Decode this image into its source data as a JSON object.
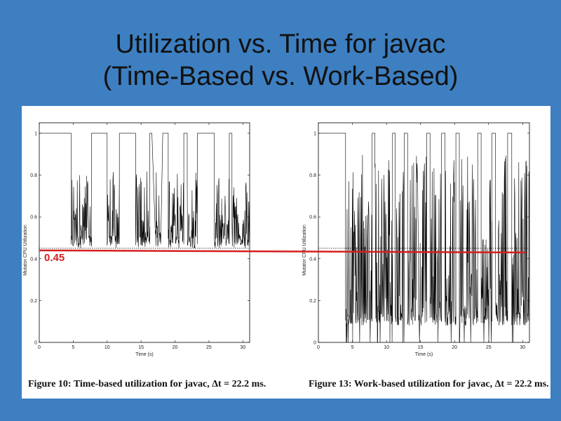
{
  "slide": {
    "title_line1": "Utilization vs. Time for javac",
    "title_line2": "(Time-Based vs. Work-Based)",
    "reference_value_label": "0.45",
    "colors": {
      "background": "#3d7fc1",
      "reference_line": "#d61f1f",
      "trace": "#000000"
    }
  },
  "chart_data": [
    {
      "type": "line",
      "caption_prefix": "Figure 10:",
      "caption_text": "Time-based utilization for javac, Δt = 22.2 ms.",
      "xlabel": "Time (s)",
      "ylabel": "Mutator CPU Utilization",
      "xlim": [
        0,
        31
      ],
      "ylim": [
        0,
        1.05
      ],
      "xticks": [
        0,
        5,
        10,
        15,
        20,
        25,
        30
      ],
      "yticks": [
        0,
        0.2,
        0.4,
        0.6,
        0.8,
        1
      ],
      "tick_labels_x": [
        "0",
        "5",
        "10",
        "15",
        "20",
        "25",
        "30"
      ],
      "tick_labels_y": [
        "0",
        "0.2",
        "0.4",
        "0.6",
        "0.8",
        "1"
      ],
      "reference_line": 0.44,
      "dotted_baseline": 0.45,
      "trace_min": 0.44,
      "trace_bottom": 0.45,
      "trace_noise_low": 0.46,
      "trace_noise_high": 0.82,
      "spike_density": 0.85,
      "full_segments": [
        [
          0,
          4.7
        ],
        [
          7.7,
          8.1
        ],
        [
          9.5,
          10.0
        ],
        [
          11.8,
          12.2
        ],
        [
          13.4,
          14.2
        ],
        [
          16.3,
          16.6
        ],
        [
          18.2,
          19.0
        ],
        [
          21.3,
          21.8
        ],
        [
          23.3,
          23.8
        ],
        [
          25.3,
          25.8
        ],
        [
          28.0,
          28.4
        ]
      ],
      "gc_segments": [
        [
          4.7,
          7.7
        ],
        [
          10.0,
          11.8
        ],
        [
          14.2,
          16.3
        ],
        [
          17.1,
          17.9
        ],
        [
          19.0,
          21.3
        ],
        [
          21.8,
          23.3
        ],
        [
          25.8,
          28.0
        ],
        [
          28.4,
          31.0
        ]
      ]
    },
    {
      "type": "line",
      "caption_prefix": "Figure 13:",
      "caption_text": "Work-based utilization for javac, Δt = 22.2 ms.",
      "xlabel": "Time (s)",
      "ylabel": "Mutator CPU Utilization",
      "xlim": [
        0,
        31
      ],
      "ylim": [
        0,
        1.05
      ],
      "xticks": [
        0,
        5,
        10,
        15,
        20,
        25,
        30
      ],
      "yticks": [
        0,
        0.2,
        0.4,
        0.6,
        0.8,
        1
      ],
      "tick_labels_x": [
        "0",
        "5",
        "10",
        "15",
        "20",
        "25",
        "30"
      ],
      "tick_labels_y": [
        "0",
        "0.2",
        "0.4",
        "0.6",
        "0.8",
        "1"
      ],
      "reference_line": 0.43,
      "dotted_baseline": 0.45,
      "trace_min": 0.0,
      "trace_bottom": 0.08,
      "trace_noise_low": 0.08,
      "trace_noise_high": 0.9,
      "spike_density": 1.0,
      "full_segments": [
        [
          0,
          4.0
        ],
        [
          7.9,
          8.3
        ],
        [
          10.9,
          11.3
        ],
        [
          12.6,
          13.1
        ],
        [
          15.9,
          16.4
        ],
        [
          18.1,
          18.6
        ],
        [
          20.2,
          20.7
        ],
        [
          23.4,
          23.9
        ],
        [
          25.5,
          26.0
        ],
        [
          27.8,
          28.4
        ]
      ],
      "gc_segments": [
        [
          4.0,
          7.9
        ],
        [
          8.3,
          10.9
        ],
        [
          11.3,
          12.6
        ],
        [
          13.1,
          15.9
        ],
        [
          16.4,
          18.1
        ],
        [
          18.6,
          20.2
        ],
        [
          20.7,
          23.4
        ],
        [
          23.9,
          25.5
        ],
        [
          26.0,
          27.8
        ],
        [
          28.4,
          31.0
        ]
      ]
    }
  ]
}
